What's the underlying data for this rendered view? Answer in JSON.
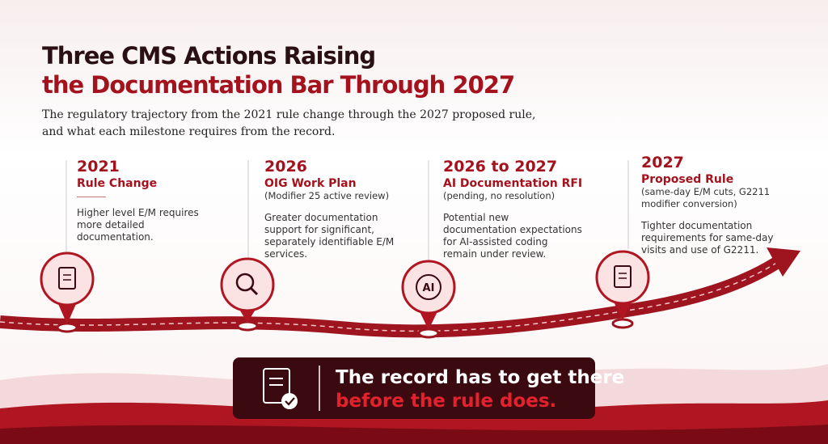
{
  "header": {
    "title_line1": "Three CMS Actions Raising",
    "title_line2": "the Documentation Bar Through 2027",
    "subtitle": "The regulatory trajectory from the 2021 rule change through the 2027 proposed rule, and what each milestone requires from the record."
  },
  "milestones": [
    {
      "year": "2021",
      "label": "Rule Change",
      "description": "Higher level E/M requires more detailed documentation."
    },
    {
      "year": "2026",
      "label": "OIG Work Plan",
      "detail": "(Modifier 25 active review)",
      "description": "Greater documentation support for significant, separately identifiable E/M services."
    },
    {
      "year": "2026 to 2027",
      "label": "AI Documentation RFI",
      "detail": "(pending, no resolution)",
      "description": "Potential new documentation expectations for AI-assisted coding remain under review.",
      "icon_text": "AI"
    },
    {
      "year": "2027",
      "label": "Proposed Rule",
      "detail": "(same-day E/M cuts, G2211 modifier conversion)",
      "description": "Tighter documentation requirements for same-day visits and use of G2211."
    }
  ],
  "callout": {
    "line1": "The record has to get there",
    "line2": "before the rule does."
  }
}
